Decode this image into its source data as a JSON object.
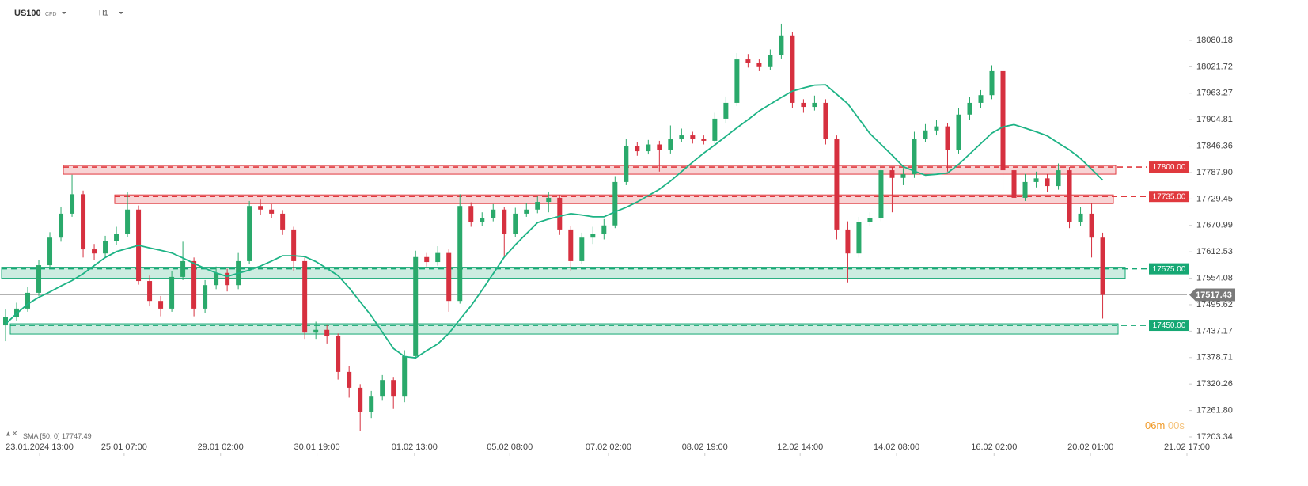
{
  "header": {
    "symbol": "US100",
    "instrument_type": "CFD",
    "timeframe": "H1"
  },
  "chart_data": {
    "type": "candlestick",
    "up_color": "#2aa96b",
    "down_color": "#d6303f",
    "open": [
      17450,
      17469,
      17487,
      17522,
      17583,
      17644,
      17697,
      17740,
      17618,
      17609,
      17636,
      17653,
      17706,
      17548,
      17504,
      17487,
      17557,
      17592,
      17487,
      17539,
      17566,
      17539,
      17592,
      17714,
      17706,
      17697,
      17662,
      17592,
      17434,
      17440,
      17426,
      17347,
      17312,
      17259,
      17294,
      17329,
      17294,
      17382,
      17601,
      17590,
      17610,
      17504,
      17714,
      17679,
      17688,
      17706,
      17653,
      17697,
      17706,
      17723,
      17732,
      17662,
      17592,
      17644,
      17653,
      17671,
      17767,
      17846,
      17835,
      17850,
      17837,
      17863,
      17870,
      17862,
      17858,
      17907,
      17942,
      18038,
      18030,
      18021,
      18047,
      18091,
      17942,
      17933,
      17942,
      17863,
      17662,
      17609,
      17679,
      17688,
      17793,
      17776,
      17784,
      17863,
      17881,
      17890,
      17837,
      17916,
      17942,
      17959,
      18012,
      17793,
      17732,
      17767,
      17775,
      17758,
      17793,
      17679,
      17697,
      17644
    ],
    "high": [
      17485,
      17500,
      17535,
      17595,
      17656,
      17712,
      17783,
      17748,
      17630,
      17648,
      17668,
      17744,
      17715,
      17560,
      17515,
      17570,
      17635,
      17600,
      17550,
      17580,
      17575,
      17610,
      17725,
      17728,
      17718,
      17705,
      17668,
      17600,
      17458,
      17452,
      17432,
      17360,
      17320,
      17305,
      17340,
      17336,
      17395,
      17615,
      17610,
      17625,
      17618,
      17740,
      17722,
      17700,
      17718,
      17712,
      17710,
      17720,
      17735,
      17745,
      17738,
      17670,
      17655,
      17668,
      17685,
      17780,
      17862,
      17856,
      17860,
      17858,
      17892,
      17885,
      17878,
      17870,
      17920,
      17956,
      18052,
      18050,
      18038,
      18060,
      18117,
      18098,
      17950,
      17958,
      17950,
      17870,
      17680,
      17690,
      17700,
      17808,
      17800,
      17798,
      17878,
      17895,
      17905,
      17898,
      17930,
      17955,
      17970,
      18025,
      18018,
      17805,
      17785,
      17790,
      17785,
      17808,
      17800,
      17712,
      17720,
      17655
    ],
    "low": [
      17415,
      17460,
      17480,
      17515,
      17575,
      17635,
      17690,
      17600,
      17595,
      17600,
      17628,
      17645,
      17540,
      17492,
      17470,
      17480,
      17550,
      17470,
      17478,
      17530,
      17525,
      17530,
      17585,
      17695,
      17688,
      17650,
      17570,
      17420,
      17420,
      17410,
      17330,
      17290,
      17216,
      17245,
      17285,
      17265,
      17280,
      17375,
      17580,
      17582,
      17480,
      17498,
      17668,
      17670,
      17680,
      17600,
      17645,
      17690,
      17698,
      17700,
      17650,
      17570,
      17585,
      17630,
      17640,
      17665,
      17760,
      17825,
      17828,
      17790,
      17830,
      17855,
      17852,
      17850,
      17852,
      17898,
      17935,
      18020,
      18012,
      18015,
      18040,
      17930,
      17920,
      17925,
      17850,
      17640,
      17545,
      17600,
      17670,
      17680,
      17700,
      17760,
      17776,
      17855,
      17870,
      17790,
      17830,
      17905,
      17930,
      17950,
      17730,
      17715,
      17725,
      17755,
      17745,
      17750,
      17665,
      17670,
      17600,
      17465
    ],
    "close": [
      17469,
      17487,
      17522,
      17583,
      17644,
      17697,
      17740,
      17618,
      17609,
      17636,
      17653,
      17706,
      17548,
      17504,
      17487,
      17557,
      17592,
      17487,
      17539,
      17566,
      17539,
      17592,
      17714,
      17706,
      17697,
      17662,
      17592,
      17434,
      17440,
      17426,
      17347,
      17312,
      17259,
      17294,
      17329,
      17294,
      17382,
      17601,
      17590,
      17610,
      17504,
      17714,
      17679,
      17688,
      17706,
      17653,
      17697,
      17706,
      17723,
      17732,
      17662,
      17592,
      17644,
      17653,
      17671,
      17767,
      17846,
      17835,
      17850,
      17837,
      17863,
      17870,
      17862,
      17858,
      17907,
      17942,
      18038,
      18030,
      18021,
      18047,
      18091,
      17942,
      17933,
      17942,
      17863,
      17662,
      17609,
      17679,
      17688,
      17793,
      17776,
      17784,
      17863,
      17881,
      17890,
      17837,
      17916,
      17942,
      17959,
      18012,
      17793,
      17732,
      17767,
      17775,
      17758,
      17793,
      17679,
      17697,
      17644,
      17517.43
    ],
    "sma": {
      "label": "SMA [50, 0]",
      "value": 17747.49,
      "color": "#1db385",
      "values": [
        17453,
        17476,
        17497,
        17512,
        17524,
        17537,
        17549,
        17564,
        17582,
        17600,
        17613,
        17620,
        17627,
        17621,
        17616,
        17610,
        17599,
        17587,
        17576,
        17566,
        17558,
        17565,
        17572,
        17581,
        17592,
        17604,
        17604,
        17602,
        17591,
        17576,
        17560,
        17533,
        17502,
        17471,
        17435,
        17399,
        17381,
        17378,
        17394,
        17409,
        17432,
        17463,
        17493,
        17528,
        17564,
        17601,
        17628,
        17653,
        17677,
        17685,
        17691,
        17697,
        17694,
        17690,
        17690,
        17701,
        17711,
        17723,
        17737,
        17751,
        17769,
        17790,
        17811,
        17831,
        17849,
        17868,
        17887,
        17905,
        17924,
        17939,
        17954,
        17968,
        17975,
        17981,
        17982,
        17961,
        17940,
        17907,
        17874,
        17850,
        17826,
        17801,
        17791,
        17782,
        17784,
        17787,
        17806,
        17829,
        17852,
        17875,
        17889,
        17894,
        17886,
        17878,
        17869,
        17853,
        17838,
        17819,
        17795,
        17771
      ]
    },
    "current_price": 17517.43,
    "levels": [
      {
        "value": 17800,
        "label": "17800.00",
        "color": "#e0393e"
      },
      {
        "value": 17735,
        "label": "17735.00",
        "color": "#e0393e"
      },
      {
        "value": 17575,
        "label": "17575.00",
        "color": "#16a874"
      },
      {
        "value": 17450,
        "label": "17450.00",
        "color": "#16a874"
      }
    ],
    "xlim": [
      -0.5,
      106.6
    ],
    "xticks": [
      {
        "value": 3.07,
        "label": "23.01.2024 13:00"
      },
      {
        "value": 10.7,
        "label": "25.01  07:00"
      },
      {
        "value": 19.4,
        "label": "29.01  02:00"
      },
      {
        "value": 28.1,
        "label": "30.01  19:00"
      },
      {
        "value": 36.9,
        "label": "01.02  13:00"
      },
      {
        "value": 45.5,
        "label": "05.02  08:00"
      },
      {
        "value": 54.4,
        "label": "07.02  02:00"
      },
      {
        "value": 63.1,
        "label": "08.02  19:00"
      },
      {
        "value": 71.7,
        "label": "12.02  14:00"
      },
      {
        "value": 80.4,
        "label": "14.02  08:00"
      },
      {
        "value": 89.2,
        "label": "16.02  02:00"
      },
      {
        "value": 97.9,
        "label": "20.02  01:00"
      },
      {
        "value": 106.6,
        "label": "21.02  17:00"
      }
    ],
    "ylim": [
      17161.3,
      18169.4
    ],
    "yticks": [
      18080.18,
      18021.72,
      17963.27,
      17904.81,
      17846.36,
      {
        "value": 17787.9,
        "label": "17787.90"
      },
      17729.45,
      17670.99,
      17612.53,
      17554.08,
      17495.62,
      17437.17,
      17378.71,
      17320.26,
      {
        "value": 17261.8,
        "label": "17261.80"
      },
      17203.34
    ]
  },
  "timer": {
    "minutes": "06m",
    "seconds": "00s"
  }
}
